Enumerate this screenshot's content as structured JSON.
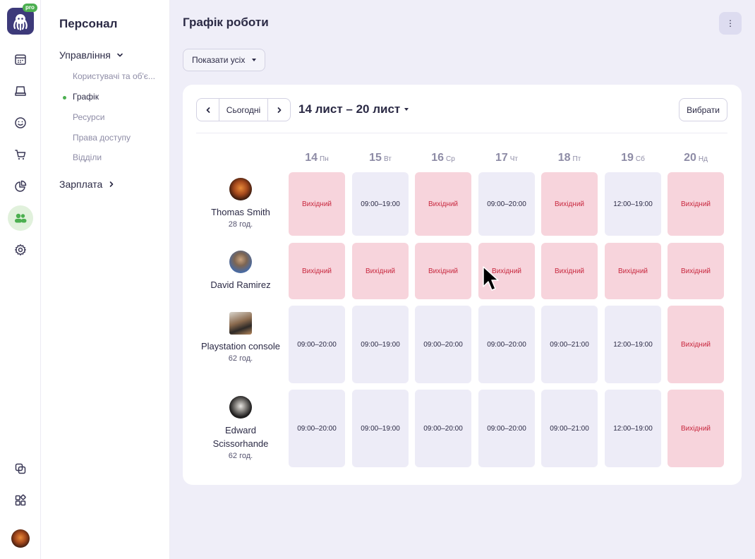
{
  "app": {
    "badge": "pro"
  },
  "rail": {
    "icons": [
      "calendar-icon",
      "inbox-icon",
      "smile-icon",
      "cart-icon",
      "pie-chart-icon",
      "people-icon",
      "gear-icon",
      "copy-icon",
      "widgets-icon"
    ],
    "active": "people-icon",
    "accent": "#4caf50"
  },
  "sidebar": {
    "title": "Персонал",
    "group_management": "Управління",
    "items": [
      "Користувачі та об'є...",
      "Графік",
      "Ресурси",
      "Права доступу",
      "Відділи"
    ],
    "active_item": "Графік",
    "group_salary": "Зарплата"
  },
  "header": {
    "title": "Графік роботи",
    "more_label": "⋮"
  },
  "filter": {
    "label": "Показати усіх"
  },
  "toolbar": {
    "prev": "‹",
    "today": "Сьогодні",
    "next": "›",
    "range": "14 лист – 20 лист",
    "select_label": "Вибрати"
  },
  "days": [
    {
      "num": "14",
      "wd": "Пн"
    },
    {
      "num": "15",
      "wd": "Вт"
    },
    {
      "num": "16",
      "wd": "Ср"
    },
    {
      "num": "17",
      "wd": "Чт"
    },
    {
      "num": "18",
      "wd": "Пт"
    },
    {
      "num": "19",
      "wd": "Сб"
    },
    {
      "num": "20",
      "wd": "Нд"
    }
  ],
  "people": [
    {
      "name": "Thomas Smith",
      "hours": "28 год.",
      "shifts": [
        "Вихідний",
        "09:00–19:00",
        "Вихідний",
        "09:00–20:00",
        "Вихідний",
        "12:00–19:00",
        "Вихідний"
      ]
    },
    {
      "name": "David Ramirez",
      "hours": "",
      "shifts": [
        "Вихідний",
        "Вихідний",
        "Вихідний",
        "Вихідний",
        "Вихідний",
        "Вихідний",
        "Вихідний"
      ]
    },
    {
      "name": "Playstation console",
      "hours": "62 год.",
      "shifts": [
        "09:00–20:00",
        "09:00–19:00",
        "09:00–20:00",
        "09:00–20:00",
        "09:00–21:00",
        "12:00–19:00",
        "Вихідний"
      ]
    },
    {
      "name": "Edward Scissorhande",
      "hours": "62 год.",
      "shifts": [
        "09:00–20:00",
        "09:00–19:00",
        "09:00–20:00",
        "09:00–20:00",
        "09:00–21:00",
        "12:00–19:00",
        "Вихідний"
      ]
    }
  ],
  "colors": {
    "work": "#edecf7",
    "off": "#f7d4dc",
    "off_text": "#c8283f"
  }
}
